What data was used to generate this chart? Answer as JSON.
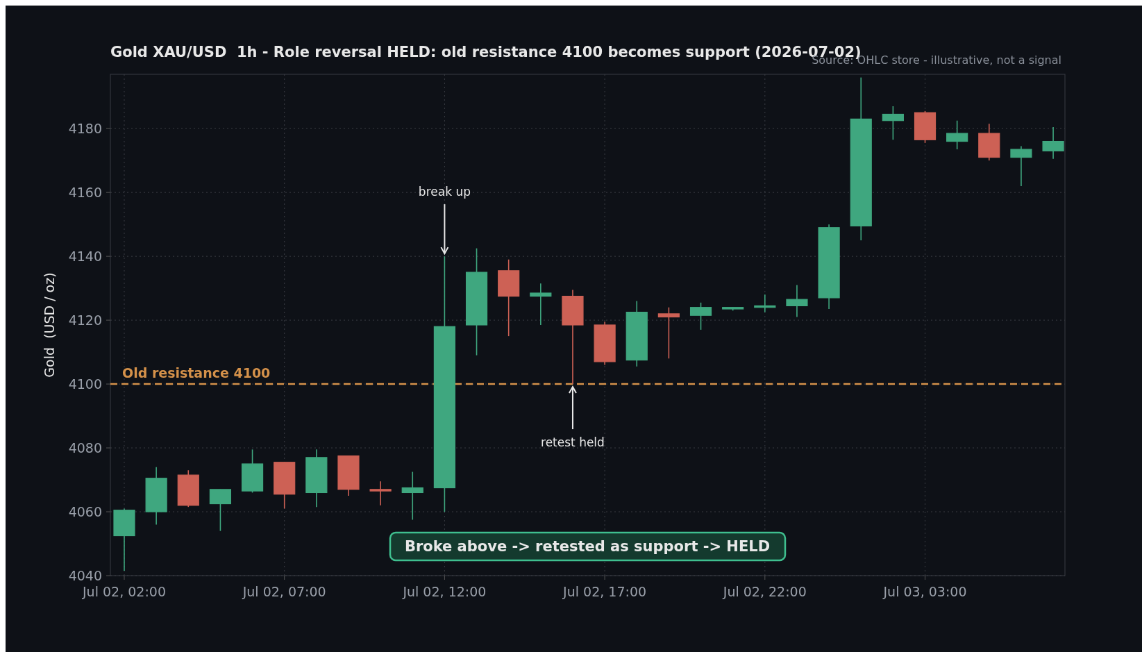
{
  "chart_data": {
    "type": "candlestick",
    "title": "Gold XAU/USD  1h - Role reversal HELD: old resistance 4100 becomes support (2026-07-02)",
    "ylabel": "Gold  (USD / oz)",
    "x": [
      "2026-07-02T02:00",
      "2026-07-02T03:00",
      "2026-07-02T04:00",
      "2026-07-02T05:00",
      "2026-07-02T06:00",
      "2026-07-02T07:00",
      "2026-07-02T08:00",
      "2026-07-02T09:00",
      "2026-07-02T10:00",
      "2026-07-02T11:00",
      "2026-07-02T12:00",
      "2026-07-02T13:00",
      "2026-07-02T14:00",
      "2026-07-02T15:00",
      "2026-07-02T16:00",
      "2026-07-02T17:00",
      "2026-07-02T18:00",
      "2026-07-02T19:00",
      "2026-07-02T20:00",
      "2026-07-02T21:00",
      "2026-07-02T22:00",
      "2026-07-02T23:00",
      "2026-07-03T00:00",
      "2026-07-03T01:00",
      "2026-07-03T02:00",
      "2026-07-03T03:00",
      "2026-07-03T04:00",
      "2026-07-03T05:00",
      "2026-07-03T06:00",
      "2026-07-03T07:00"
    ],
    "ohlc": [
      [
        4052.5,
        4061,
        4041.5,
        4060.5
      ],
      [
        4060,
        4074,
        4056,
        4070.5
      ],
      [
        4071.5,
        4073,
        4061.5,
        4062
      ],
      [
        4062.5,
        4067,
        4054,
        4067
      ],
      [
        4066.5,
        4079.5,
        4066,
        4075
      ],
      [
        4075.5,
        4075.5,
        4061,
        4065.5
      ],
      [
        4066,
        4079.5,
        4061.5,
        4077
      ],
      [
        4077.5,
        4077.5,
        4065,
        4067
      ],
      [
        4067,
        4069.5,
        4062,
        4066.5
      ],
      [
        4066,
        4072.5,
        4057.5,
        4067.5
      ],
      [
        4067.5,
        4140,
        4060,
        4118
      ],
      [
        4118.5,
        4142.5,
        4109,
        4135
      ],
      [
        4135.5,
        4139,
        4115,
        4127.5
      ],
      [
        4127.5,
        4131.5,
        4118.5,
        4128.5
      ],
      [
        4127.5,
        4129.5,
        4100,
        4118.5
      ],
      [
        4118.5,
        4119.5,
        4106,
        4107
      ],
      [
        4107.5,
        4126,
        4105.5,
        4122.5
      ],
      [
        4122,
        4124,
        4108,
        4121
      ],
      [
        4121.5,
        4125.5,
        4117,
        4124
      ],
      [
        4123.5,
        4124,
        4123,
        4124
      ],
      [
        4124,
        4128,
        4122.5,
        4124.5
      ],
      [
        4124.5,
        4131,
        4121,
        4126.5
      ],
      [
        4127,
        4150,
        4123.5,
        4149
      ],
      [
        4149.5,
        4196,
        4145,
        4183
      ],
      [
        4182.5,
        4187,
        4176.5,
        4184.5
      ],
      [
        4185,
        4185.5,
        4175.5,
        4176.5
      ],
      [
        4176,
        4182.5,
        4173.5,
        4178.5
      ],
      [
        4178.5,
        4181.5,
        4170,
        4171
      ],
      [
        4171,
        4174.5,
        4162,
        4173.5
      ],
      [
        4173,
        4180.5,
        4170.5,
        4176
      ]
    ],
    "colors": [
      "#3fa77f",
      "#3fa77f",
      "#cd6155",
      "#3fa77f",
      "#3fa77f",
      "#cd6155",
      "#3fa77f",
      "#cd6155",
      "#cd6155",
      "#3fa77f",
      "#3fa77f",
      "#3fa77f",
      "#cd6155",
      "#3fa77f",
      "#cd6155",
      "#cd6155",
      "#3fa77f",
      "#cd6155",
      "#3fa77f",
      "#3fa77f",
      "#3fa77f",
      "#3fa77f",
      "#3fa77f",
      "#3fa77f",
      "#3fa77f",
      "#cd6155",
      "#3fa77f",
      "#cd6155",
      "#3fa77f",
      "#3fa77f"
    ],
    "xlim": [
      "2026-07-02T01:34",
      "2026-07-03T07:22"
    ],
    "xticks": [
      {
        "value": "2026-07-02T02:00",
        "label": "Jul 02, 02:00"
      },
      {
        "value": "2026-07-02T07:00",
        "label": "Jul 02, 07:00"
      },
      {
        "value": "2026-07-02T12:00",
        "label": "Jul 02, 12:00"
      },
      {
        "value": "2026-07-02T17:00",
        "label": "Jul 02, 17:00"
      },
      {
        "value": "2026-07-02T22:00",
        "label": "Jul 02, 22:00"
      },
      {
        "value": "2026-07-03T03:00",
        "label": "Jul 03, 03:00"
      }
    ],
    "ylim": [
      4040,
      4197
    ],
    "yticks": [
      4040,
      4060,
      4080,
      4100,
      4120,
      4140,
      4160,
      4180
    ],
    "grid": true,
    "ref_lines": [
      {
        "axis": "y",
        "value": 4100,
        "label": "Old resistance 4100",
        "color": "#d4914a",
        "line_style": "dashed"
      }
    ],
    "annotations": [
      {
        "text": "break up",
        "x": "2026-07-02T12:00",
        "y": 4140
      },
      {
        "text": "retest held",
        "x": "2026-07-02T16:00",
        "y": 4100
      },
      "Broke above -> retested as support -> HELD",
      "Source: OHLC store - illustrative, not a signal"
    ]
  }
}
